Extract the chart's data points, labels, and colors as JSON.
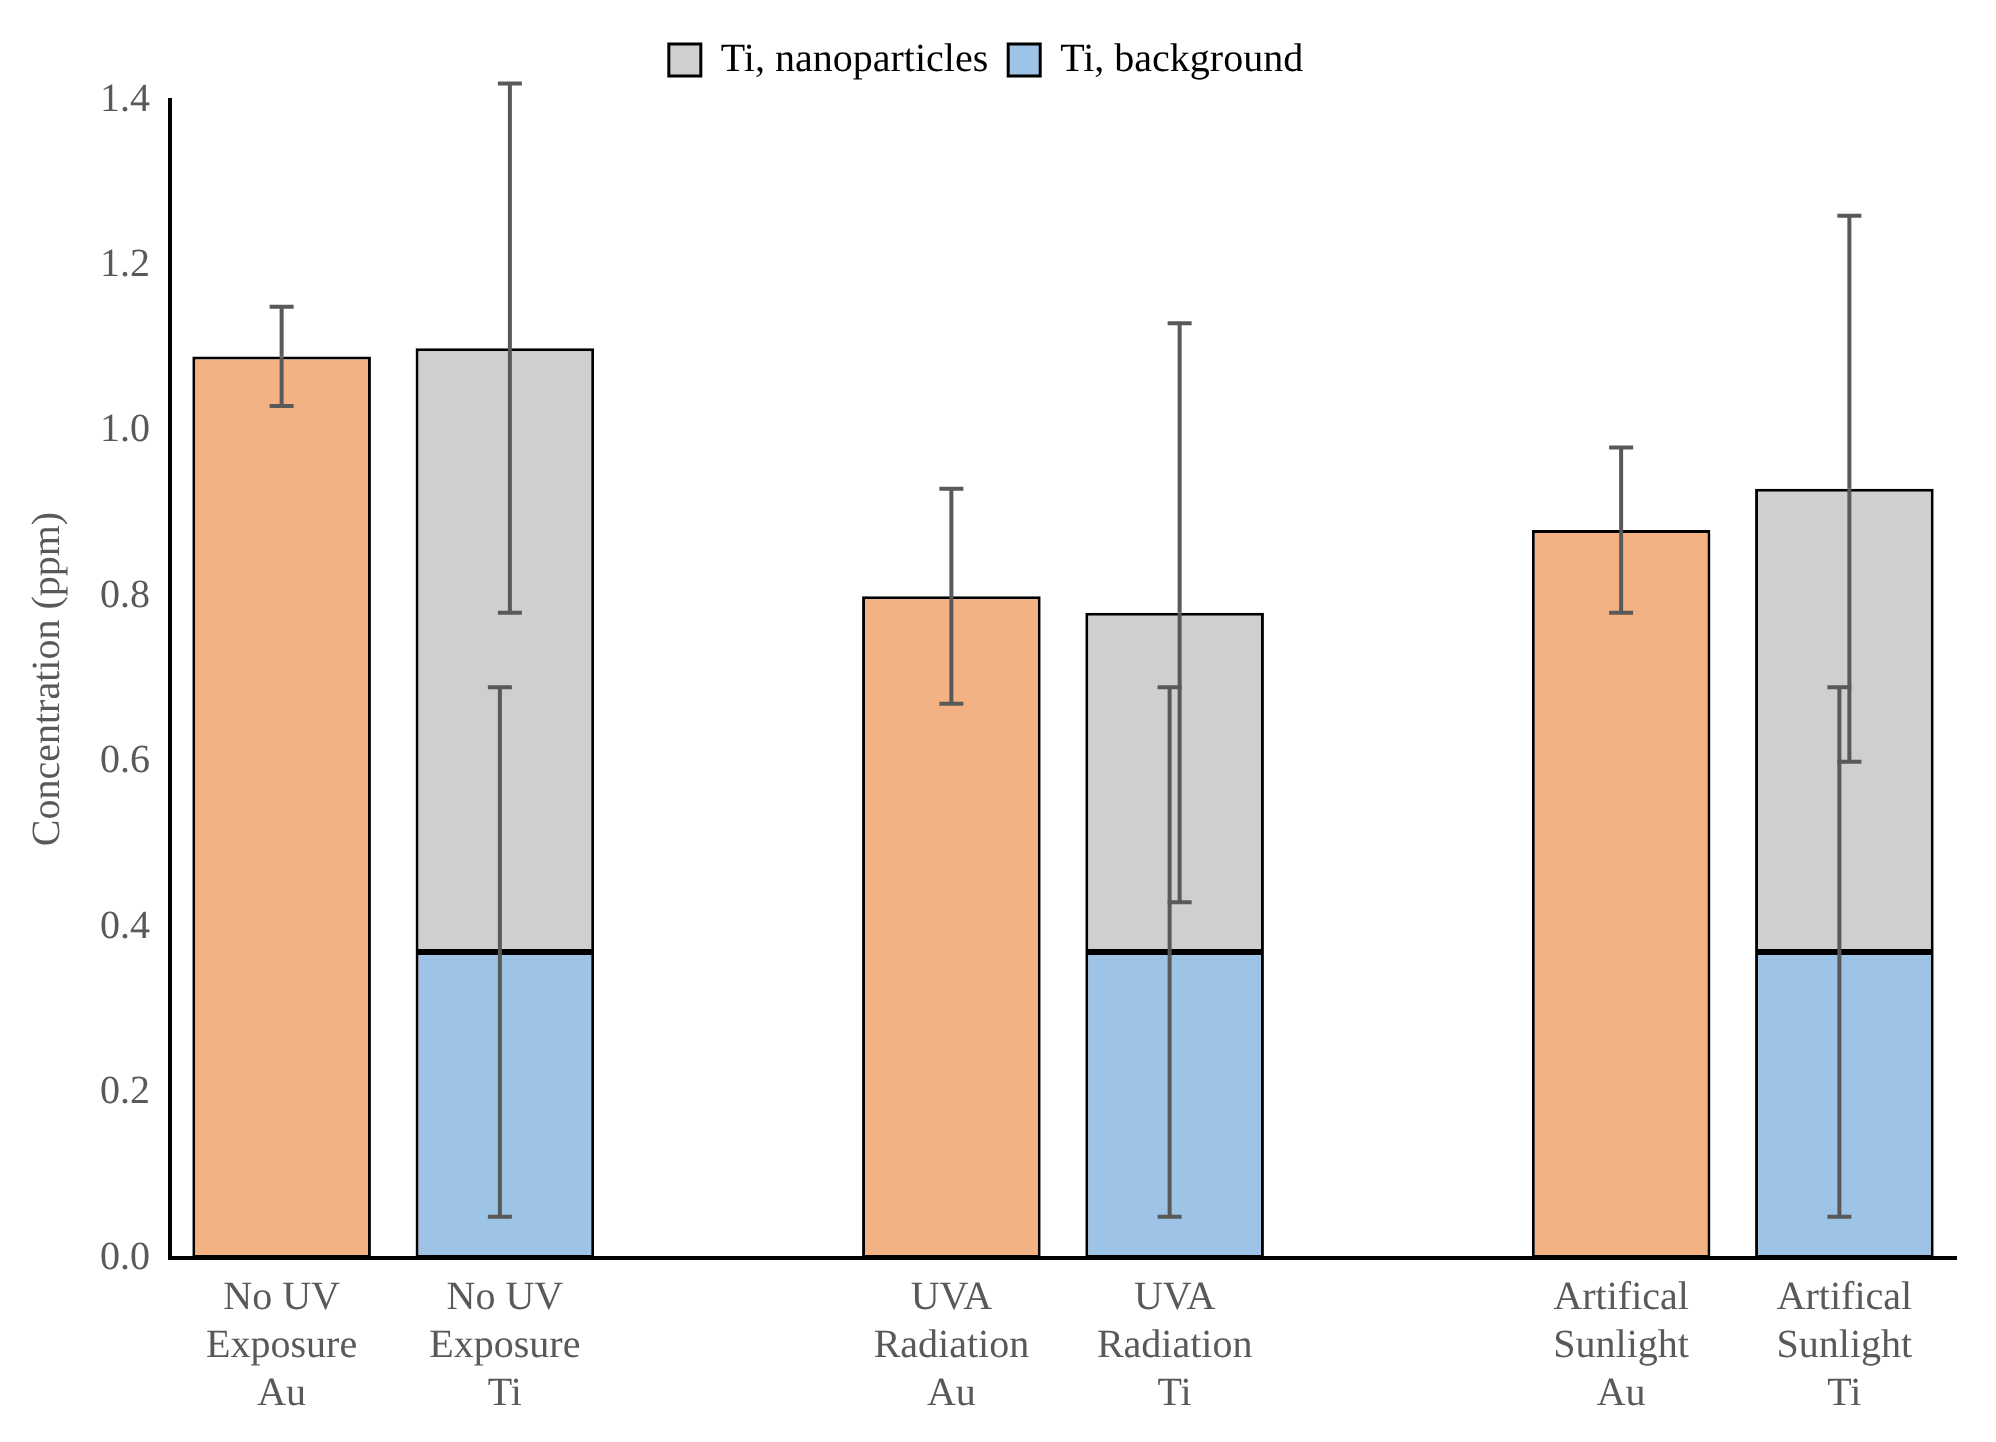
{
  "chart_data": {
    "type": "bar",
    "ylabel": "Concentration (ppm)",
    "categories": [
      "No UV Exposure Au",
      "No UV Exposure Ti",
      null,
      "UVA Radiation Au",
      "UVA Radiation Ti",
      null,
      "Artifical Sunlight Au",
      "Artifical Sunlight Ti"
    ],
    "stacked": true,
    "series": [
      {
        "color": "#f4b183",
        "values": [
          1.09,
          null,
          null,
          0.8,
          null,
          null,
          0.88,
          null
        ],
        "errors": [
          0.06,
          null,
          null,
          0.13,
          null,
          null,
          0.1,
          null
        ]
      },
      {
        "name": "Ti, background",
        "color": "#9dc3e6",
        "values": [
          null,
          0.37,
          null,
          null,
          0.37,
          null,
          null,
          0.37
        ],
        "errors": [
          null,
          0.32,
          null,
          null,
          0.32,
          null,
          null,
          0.32
        ]
      },
      {
        "name": "Ti, nanoparticles",
        "color": "#d0cece",
        "values": [
          null,
          0.73,
          null,
          null,
          0.41,
          null,
          null,
          0.56
        ],
        "errors": [
          null,
          0.32,
          null,
          null,
          0.35,
          null,
          null,
          0.33
        ]
      }
    ],
    "ylim": [
      0,
      1.4
    ],
    "yticks": [
      {
        "value": 0,
        "label": "0.0"
      },
      0.2,
      0.4,
      0.6,
      0.8,
      {
        "value": 1,
        "label": "1.0"
      },
      1.2,
      1.4
    ],
    "grid": false,
    "legend": "top"
  }
}
